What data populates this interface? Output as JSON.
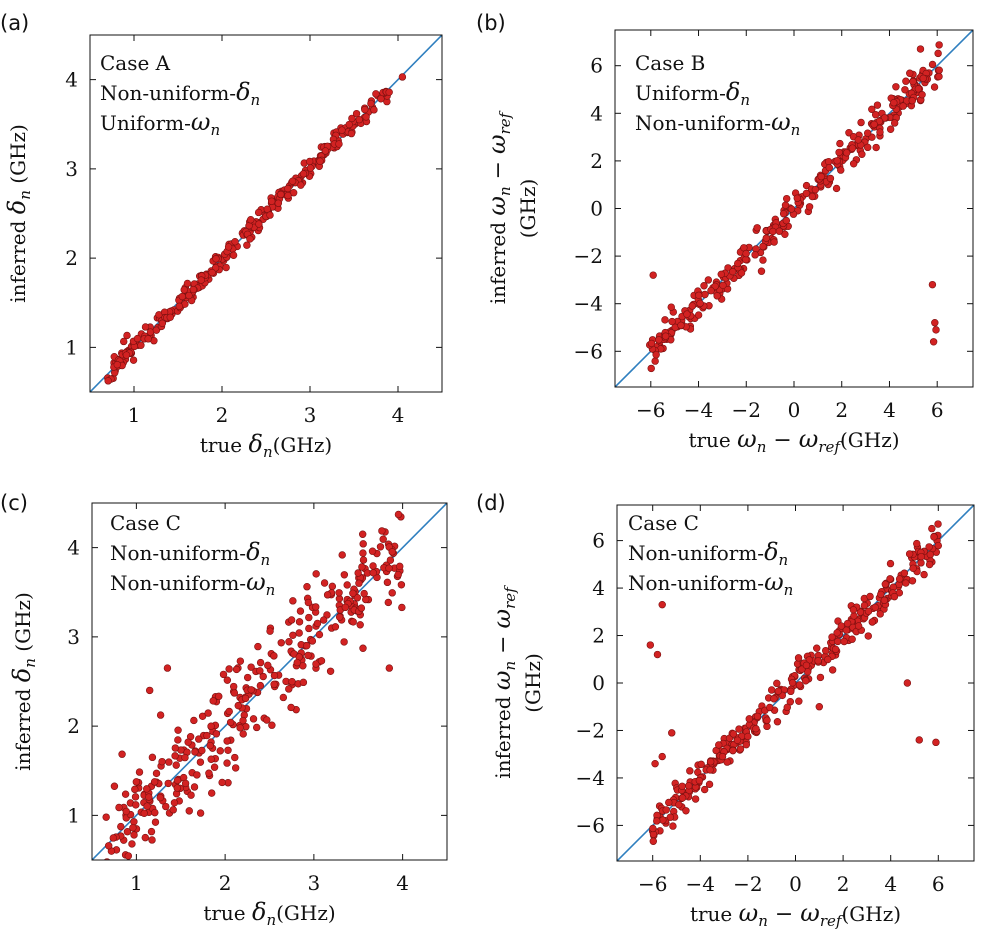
{
  "chart_data": [
    {
      "id": "a",
      "type": "scatter",
      "panel_label": "(a)",
      "title": "",
      "annotation": {
        "case": "Case A",
        "line1": "Non-uniform-",
        "sym1": "δ",
        "sub1": "n",
        "line2": "Uniform-",
        "sym2": "ω",
        "sub2": "n"
      },
      "xlabel": {
        "prefix": "true ",
        "sym": "δ",
        "sub": "n",
        "suffix": "(GHz)"
      },
      "ylabel": {
        "prefix": "inferred ",
        "sym": "δ",
        "sub": "n",
        "suffix": "(GHz)"
      },
      "xlim": [
        0.5,
        4.5
      ],
      "ylim": [
        0.5,
        4.5
      ],
      "xticks": [
        1,
        2,
        3,
        4
      ],
      "yticks": [
        1,
        2,
        3,
        4
      ],
      "diagonal": true,
      "gen": {
        "n": 300,
        "min": 0.7,
        "max": 3.9,
        "noise": 0.06,
        "seed": 11,
        "outliers": [
          [
            4.05,
            4.03
          ]
        ]
      }
    },
    {
      "id": "b",
      "type": "scatter",
      "panel_label": "(b)",
      "title": "",
      "annotation": {
        "case": "Case B",
        "line1": "Uniform-",
        "sym1": "δ",
        "sub1": "n",
        "line2": "Non-uniform-",
        "sym2": "ω",
        "sub2": "n"
      },
      "xlabel": {
        "prefix": "true ",
        "sym": "ω",
        "sub": "n",
        "mid": " − ",
        "sym2": "ω",
        "sub2": "ref",
        "suffix": "(GHz)"
      },
      "ylabel": {
        "prefix": "inferred ",
        "sym": "ω",
        "sub": "n",
        "mid": " − ",
        "sym2": "ω",
        "sub2": "ref",
        "line2": "(GHz)"
      },
      "xlim": [
        -7.5,
        7.5
      ],
      "ylim": [
        -7.5,
        7.5
      ],
      "xticks": [
        -6,
        -4,
        -2,
        0,
        2,
        4,
        6
      ],
      "yticks": [
        -6,
        -4,
        -2,
        0,
        2,
        4,
        6
      ],
      "tick_labels": [
        "−6",
        "−4",
        "−2",
        "0",
        "2",
        "4",
        "6"
      ],
      "diagonal": true,
      "gen": {
        "n": 320,
        "min": -6.1,
        "max": 6.1,
        "noise": 0.35,
        "seed": 23,
        "outliers": [
          [
            -5.9,
            -2.8
          ],
          [
            5.8,
            -3.2
          ],
          [
            5.9,
            -4.8
          ],
          [
            5.95,
            -5.1
          ],
          [
            5.85,
            -5.6
          ],
          [
            5.3,
            6.7
          ]
        ]
      }
    },
    {
      "id": "c",
      "type": "scatter",
      "panel_label": "(c)",
      "title": "",
      "annotation": {
        "case": "Case C",
        "line1": "Non-uniform-",
        "sym1": "δ",
        "sub1": "n",
        "line2": "Non-uniform-",
        "sym2": "ω",
        "sub2": "n"
      },
      "xlabel": {
        "prefix": "true ",
        "sym": "δ",
        "sub": "n",
        "suffix": "(GHz)"
      },
      "ylabel": {
        "prefix": "inferred ",
        "sym": "δ",
        "sub": "n",
        "suffix": "(GHz)"
      },
      "xlim": [
        0.5,
        4.5
      ],
      "ylim": [
        0.5,
        4.5
      ],
      "xticks": [
        1,
        2,
        3,
        4
      ],
      "yticks": [
        1,
        2,
        3,
        4
      ],
      "diagonal": true,
      "gen": {
        "n": 340,
        "min": 0.65,
        "max": 4.0,
        "noise": 0.28,
        "seed": 37,
        "outliers": [
          [
            0.95,
            0.68
          ],
          [
            3.55,
            4.15
          ],
          [
            3.85,
            2.65
          ],
          [
            1.15,
            2.4
          ],
          [
            1.35,
            2.65
          ]
        ]
      }
    },
    {
      "id": "d",
      "type": "scatter",
      "panel_label": "(d)",
      "title": "",
      "annotation": {
        "case": "Case C",
        "line1": "Non-uniform-",
        "sym1": "δ",
        "sub1": "n",
        "line2": "Non-uniform-",
        "sym2": "ω",
        "sub2": "n"
      },
      "xlabel": {
        "prefix": "true ",
        "sym": "ω",
        "sub": "n",
        "mid": " − ",
        "sym2": "ω",
        "sub2": "ref",
        "suffix": "(GHz)"
      },
      "ylabel": {
        "prefix": "inferred ",
        "sym": "ω",
        "sub": "n",
        "mid": " − ",
        "sym2": "ω",
        "sub2": "ref",
        "line2": "(GHz)"
      },
      "xlim": [
        -7.5,
        7.5
      ],
      "ylim": [
        -7.5,
        7.5
      ],
      "xticks": [
        -6,
        -4,
        -2,
        0,
        2,
        4,
        6
      ],
      "yticks": [
        -6,
        -4,
        -2,
        0,
        2,
        4,
        6
      ],
      "tick_labels": [
        "−6",
        "−4",
        "−2",
        "0",
        "2",
        "4",
        "6"
      ],
      "diagonal": true,
      "gen": {
        "n": 330,
        "min": -6.1,
        "max": 6.0,
        "noise": 0.38,
        "seed": 53,
        "outliers": [
          [
            -5.6,
            3.3
          ],
          [
            -6.1,
            1.6
          ],
          [
            -5.8,
            1.2
          ],
          [
            -5.2,
            -2.1
          ],
          [
            -5.6,
            -3.1
          ],
          [
            -5.9,
            -3.4
          ],
          [
            4.7,
            0.0
          ],
          [
            5.2,
            -2.4
          ],
          [
            5.9,
            -2.5
          ],
          [
            1.0,
            -1.0
          ]
        ]
      }
    }
  ]
}
